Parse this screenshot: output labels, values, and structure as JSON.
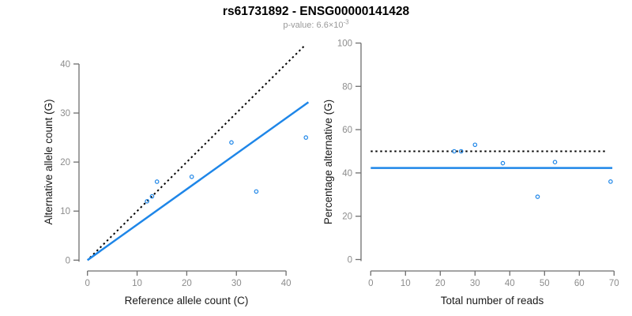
{
  "header": {
    "title": "rs61731892 - ENSG00000141428",
    "subtitle_prefix": "p-value: 6.6",
    "subtitle_times": "×",
    "subtitle_base": "10",
    "subtitle_exponent": "-3"
  },
  "colors": {
    "accent_blue": "#1E86E8",
    "identity_black": "#000000",
    "axis_line_gray": "#6E6E6E",
    "tick_label_gray": "#8C8C8C",
    "axis_title_color": "#1A1A1A",
    "title_color": "#000000",
    "subtitle_gray": "#999999",
    "point_fill": "#FFFFFF"
  },
  "chart_data": [
    {
      "type": "scatter",
      "name": "allele-counts-panel",
      "title": "",
      "xlabel": "Reference allele count (C)",
      "ylabel": "Alternative allele count (G)",
      "xlim": [
        0,
        44.8
      ],
      "ylim": [
        0,
        44.5
      ],
      "xticks": [
        0,
        10,
        20,
        30,
        40
      ],
      "yticks": [
        0,
        10,
        20,
        30,
        40
      ],
      "grid": false,
      "legend": "none",
      "point_style": "open-circle",
      "points": [
        [
          12,
          12
        ],
        [
          13,
          13
        ],
        [
          14,
          16
        ],
        [
          21,
          17
        ],
        [
          29,
          24
        ],
        [
          34,
          14
        ],
        [
          44,
          25
        ]
      ],
      "lines": [
        {
          "name": "identity-line",
          "style": "dotted",
          "color": "black",
          "x1": 0.5,
          "y1": 0.5,
          "x2": 43.8,
          "y2": 43.8
        },
        {
          "name": "fit-line",
          "style": "solid",
          "color": "blue",
          "x1": 0,
          "y1": 0,
          "x2": 44.5,
          "y2": 32.2
        }
      ]
    },
    {
      "type": "scatter",
      "name": "percentage-panel",
      "title": "",
      "xlabel": "Total number of reads",
      "ylabel": "Percentage alternative (G)",
      "xlim": [
        0,
        70.3
      ],
      "ylim": [
        0,
        100
      ],
      "xticks": [
        0,
        10,
        20,
        30,
        40,
        50,
        60,
        70
      ],
      "yticks": [
        0,
        20,
        40,
        60,
        80,
        100
      ],
      "grid": false,
      "legend": "none",
      "point_style": "open-circle",
      "points": [
        [
          24,
          50
        ],
        [
          26,
          50
        ],
        [
          30,
          53
        ],
        [
          38,
          44.5
        ],
        [
          48,
          29
        ],
        [
          53,
          45
        ],
        [
          69,
          36
        ]
      ],
      "lines": [
        {
          "name": "expected-50pct-line",
          "style": "dotted",
          "color": "black",
          "x1": 0,
          "y1": 50,
          "x2": 68,
          "y2": 50
        },
        {
          "name": "observed-ratio-line",
          "style": "solid",
          "color": "blue",
          "x1": 0,
          "y1": 42.3,
          "x2": 69.5,
          "y2": 42.3
        }
      ]
    }
  ]
}
